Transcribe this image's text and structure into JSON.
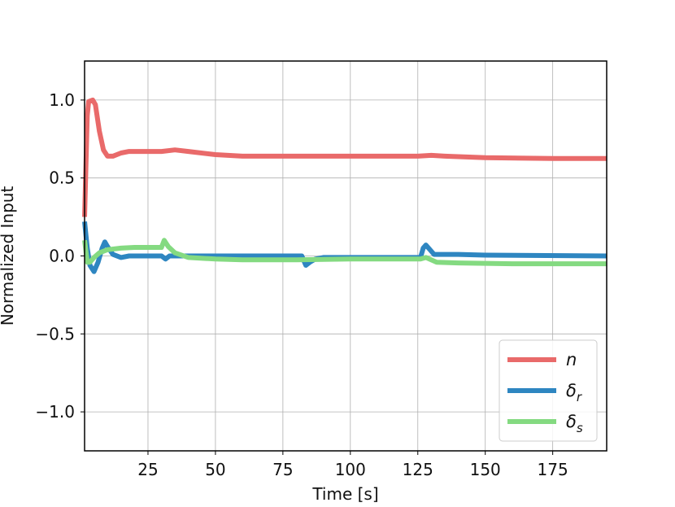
{
  "chart_data": {
    "type": "line",
    "title": "",
    "xlabel": "Time [s]",
    "ylabel": "Normalized Input",
    "xlim": [
      1.5,
      195
    ],
    "ylim": [
      -1.25,
      1.25
    ],
    "x_ticks": [
      25,
      50,
      75,
      100,
      125,
      150,
      175
    ],
    "y_ticks": [
      1.0,
      0.5,
      0.0,
      -0.5,
      -1.0
    ],
    "x_tick_labels": [
      "25",
      "50",
      "75",
      "100",
      "125",
      "150",
      "175"
    ],
    "y_tick_labels": [
      "1.0",
      "0.5",
      "0.0",
      "−0.5",
      "−1.0"
    ],
    "grid": true,
    "legend_position": "bottom-right",
    "series": [
      {
        "name": "n",
        "color": "#e96a6a",
        "points": [
          [
            1.5,
            0.25
          ],
          [
            2.5,
            0.9
          ],
          [
            3,
            0.99
          ],
          [
            4.5,
            1.0
          ],
          [
            5.5,
            0.97
          ],
          [
            7,
            0.8
          ],
          [
            8.5,
            0.68
          ],
          [
            10,
            0.64
          ],
          [
            12,
            0.64
          ],
          [
            15,
            0.66
          ],
          [
            18,
            0.67
          ],
          [
            25,
            0.67
          ],
          [
            30,
            0.67
          ],
          [
            35,
            0.68
          ],
          [
            40,
            0.67
          ],
          [
            50,
            0.65
          ],
          [
            60,
            0.64
          ],
          [
            75,
            0.64
          ],
          [
            100,
            0.64
          ],
          [
            125,
            0.64
          ],
          [
            130,
            0.645
          ],
          [
            135,
            0.64
          ],
          [
            150,
            0.63
          ],
          [
            175,
            0.625
          ],
          [
            195,
            0.625
          ]
        ]
      },
      {
        "name": "δr",
        "color": "#2e86c1",
        "points": [
          [
            1.5,
            0.22
          ],
          [
            2.5,
            0.05
          ],
          [
            3.5,
            -0.06
          ],
          [
            5,
            -0.1
          ],
          [
            6.5,
            -0.04
          ],
          [
            8,
            0.05
          ],
          [
            9,
            0.09
          ],
          [
            10,
            0.06
          ],
          [
            12,
            0.01
          ],
          [
            15,
            -0.01
          ],
          [
            18,
            0.0
          ],
          [
            25,
            0.0
          ],
          [
            30,
            0.0
          ],
          [
            31.5,
            -0.02
          ],
          [
            33,
            0.0
          ],
          [
            40,
            0.0
          ],
          [
            60,
            0.0
          ],
          [
            82,
            0.0
          ],
          [
            83.5,
            -0.06
          ],
          [
            85,
            -0.04
          ],
          [
            87,
            -0.02
          ],
          [
            90,
            -0.01
          ],
          [
            100,
            -0.01
          ],
          [
            126,
            -0.01
          ],
          [
            127,
            0.05
          ],
          [
            128,
            0.07
          ],
          [
            129.5,
            0.04
          ],
          [
            131,
            0.01
          ],
          [
            140,
            0.01
          ],
          [
            150,
            0.005
          ],
          [
            195,
            0.0
          ]
        ]
      },
      {
        "name": "δs",
        "color": "#84da81",
        "points": [
          [
            1.5,
            0.1
          ],
          [
            2.5,
            -0.04
          ],
          [
            3.5,
            -0.04
          ],
          [
            5,
            -0.01
          ],
          [
            7,
            0.02
          ],
          [
            10,
            0.04
          ],
          [
            15,
            0.05
          ],
          [
            20,
            0.055
          ],
          [
            25,
            0.055
          ],
          [
            30,
            0.055
          ],
          [
            31,
            0.1
          ],
          [
            32.5,
            0.06
          ],
          [
            35,
            0.02
          ],
          [
            40,
            -0.01
          ],
          [
            50,
            -0.02
          ],
          [
            60,
            -0.025
          ],
          [
            80,
            -0.025
          ],
          [
            100,
            -0.02
          ],
          [
            126,
            -0.02
          ],
          [
            128,
            -0.01
          ],
          [
            132,
            -0.04
          ],
          [
            140,
            -0.045
          ],
          [
            160,
            -0.05
          ],
          [
            195,
            -0.05
          ]
        ]
      }
    ],
    "legend": [
      {
        "base": "n",
        "sub": ""
      },
      {
        "base": "δ",
        "sub": "r"
      },
      {
        "base": "δ",
        "sub": "s"
      }
    ]
  }
}
